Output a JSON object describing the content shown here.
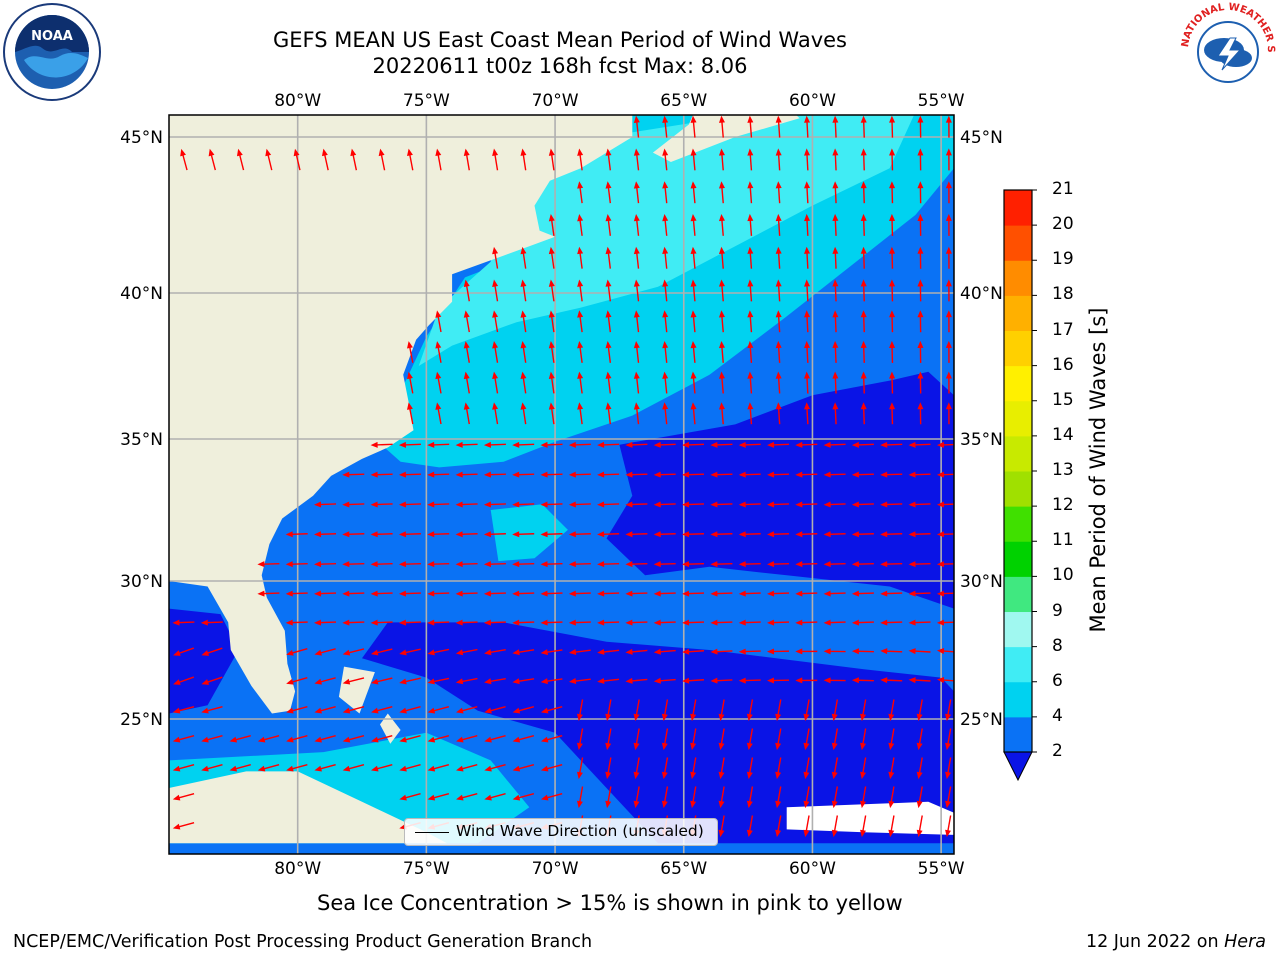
{
  "title": {
    "line1": "GEFS MEAN US East Coast Mean Period of Wind Waves",
    "line2": "20220611 t00z 168h fcst   Max: 8.06"
  },
  "map": {
    "lon_range": [
      -85,
      -54.5
    ],
    "lat_range": [
      20.5,
      46
    ],
    "lon_ticks": [
      "80°W",
      "75°W",
      "70°W",
      "65°W",
      "60°W",
      "55°W"
    ],
    "lat_ticks": [
      "45°N",
      "40°N",
      "35°N",
      "30°N",
      "25°N"
    ],
    "grid": true,
    "land_color": "#efefdc"
  },
  "legend": {
    "label": "Wind Wave Direction (unscaled)",
    "placement": "bottom-center"
  },
  "colorbar": {
    "title": "Mean Period of Wind Waves [s]",
    "ticks": [
      "2",
      "4",
      "6",
      "8",
      "9",
      "10",
      "11",
      "12",
      "13",
      "14",
      "15",
      "16",
      "17",
      "18",
      "19",
      "20",
      "21"
    ],
    "colors": [
      "#0a72f5",
      "#00d2f0",
      "#40ecf4",
      "#a0f8f0",
      "#40e880",
      "#00d200",
      "#40e000",
      "#a0e000",
      "#c8ea00",
      "#e8ee00",
      "#fff000",
      "#ffd000",
      "#ffb000",
      "#ff8c00",
      "#ff5000",
      "#ff2000"
    ],
    "extend_color": "#0a14e6",
    "extend": "min"
  },
  "caption": "Sea Ice Concentration > 15% is shown in pink to yellow",
  "footer": {
    "left": "NCEP/EMC/Verification Post Processing Product Generation Branch",
    "right_date": "12 Jun 2022 on ",
    "right_host": "Hera"
  },
  "logos": {
    "left": "NOAA",
    "right": "NATIONAL WEATHER SERVICE"
  }
}
